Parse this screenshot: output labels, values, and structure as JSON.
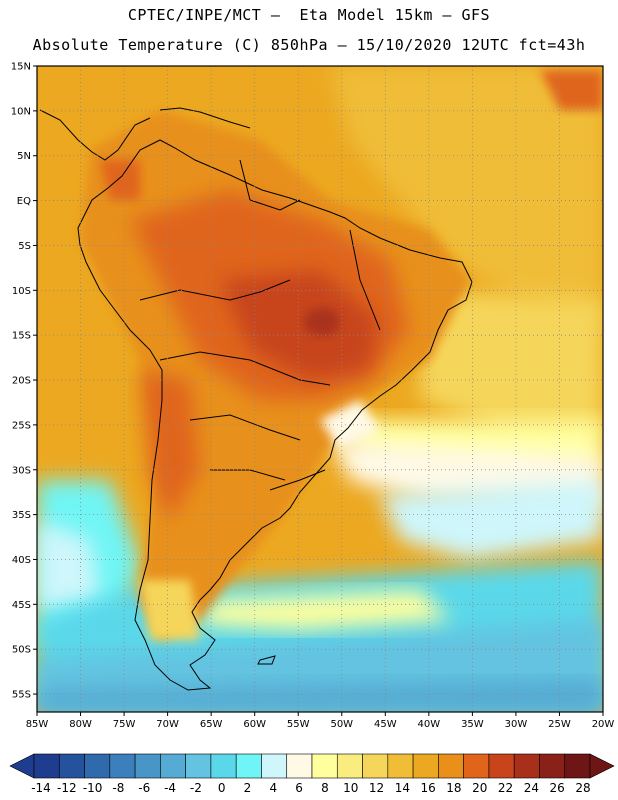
{
  "header": {
    "line1": "CPTEC/INPE/MCT –  Eta Model 15km – GFS",
    "line2": "Absolute Temperature (C) 850hPa – 15/10/2020 12UTC fct=43h"
  },
  "map": {
    "lat_ticks": [
      "15N",
      "10N",
      "5N",
      "EQ",
      "5S",
      "10S",
      "15S",
      "20S",
      "25S",
      "30S",
      "35S",
      "40S",
      "45S",
      "50S",
      "55S"
    ],
    "lon_ticks": [
      "85W",
      "80W",
      "75W",
      "70W",
      "65W",
      "60W",
      "55W",
      "50W",
      "45W",
      "40W",
      "35W",
      "30W",
      "25W",
      "20W"
    ],
    "lat_range": [
      15,
      -57
    ],
    "lon_range": [
      -85,
      -20
    ],
    "grid": "dotted"
  },
  "colorbar": {
    "labels": [
      "-14",
      "-12",
      "-10",
      "-8",
      "-6",
      "-4",
      "-2",
      "0",
      "2",
      "4",
      "6",
      "8",
      "10",
      "12",
      "14",
      "16",
      "18",
      "20",
      "22",
      "24",
      "26",
      "28"
    ],
    "colors": [
      "#1f3d8f",
      "#25529d",
      "#2f6aad",
      "#3b7fbd",
      "#4896c8",
      "#55abd3",
      "#63c3e0",
      "#5ad8ea",
      "#6ff5f5",
      "#cef6fb",
      "#fff9e6",
      "#ffff9e",
      "#f8ed7e",
      "#f5d65a",
      "#f0bd37",
      "#eca820",
      "#e8901a",
      "#e0651a",
      "#c8441a",
      "#a8301a",
      "#8a2118",
      "#6e1515"
    ]
  }
}
